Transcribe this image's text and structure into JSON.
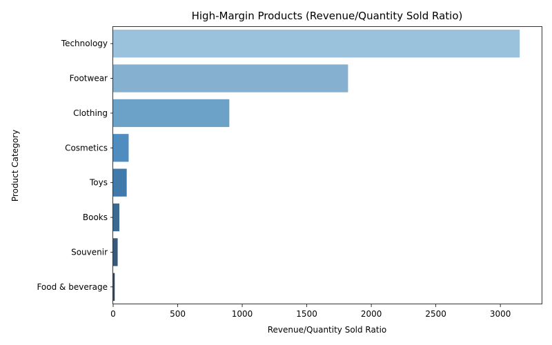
{
  "chart_data": {
    "type": "bar",
    "orientation": "horizontal",
    "title": "High-Margin Products (Revenue/Quantity Sold Ratio)",
    "xlabel": "Revenue/Quantity Sold Ratio",
    "ylabel": "Product Category",
    "categories": [
      "Technology",
      "Footwear",
      "Clothing",
      "Cosmetics",
      "Toys",
      "Books",
      "Souvenir",
      "Food & beverage"
    ],
    "values": [
      3150,
      1820,
      900,
      120,
      105,
      48,
      35,
      12
    ],
    "colors": [
      "#9ac2dc",
      "#86b0d0",
      "#6ca2c7",
      "#4f8dc0",
      "#3f7aab",
      "#3a6a92",
      "#38597a",
      "#33485f"
    ],
    "xlim": [
      0,
      3320
    ],
    "xticks": [
      0,
      500,
      1000,
      1500,
      2000,
      2500,
      3000
    ],
    "grid": false,
    "legend": "none"
  }
}
